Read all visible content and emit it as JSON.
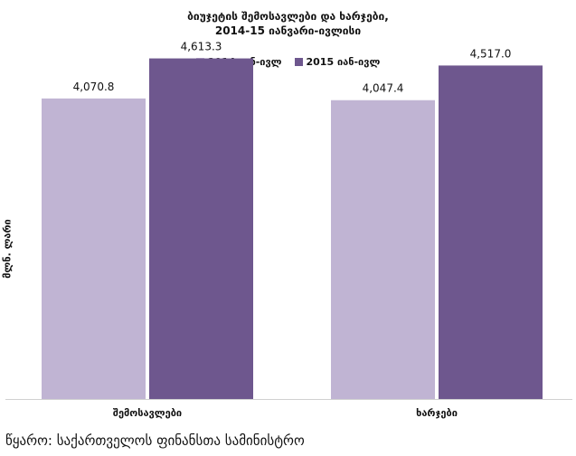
{
  "chart_data": {
    "type": "bar",
    "title": [
      "ბიუჯეტის შემოსავლები და ხარჯები,",
      "2014-15 იანვარი-ივლისი"
    ],
    "categories": [
      "შემოსავლები",
      "ხარჯები"
    ],
    "series": [
      {
        "name": "2014 იან-ივლ",
        "color": "#c0b4d3",
        "values": [
          4070.8,
          4047.4
        ],
        "labels": [
          "4,070.8",
          "4,047.4"
        ]
      },
      {
        "name": "2015 იან-ივლ",
        "color": "#6e578e",
        "values": [
          4613.3,
          4517.0
        ],
        "labels": [
          "4,613.3",
          "4,517.0"
        ]
      }
    ],
    "xlabel": "",
    "ylabel": "მლნ. ლარი",
    "ylim": [
      0,
      5000
    ],
    "grid": false,
    "legend": "top-center"
  },
  "footer": {
    "source": "წყარო: საქართველოს ფინანსთა სამინისტრო"
  }
}
